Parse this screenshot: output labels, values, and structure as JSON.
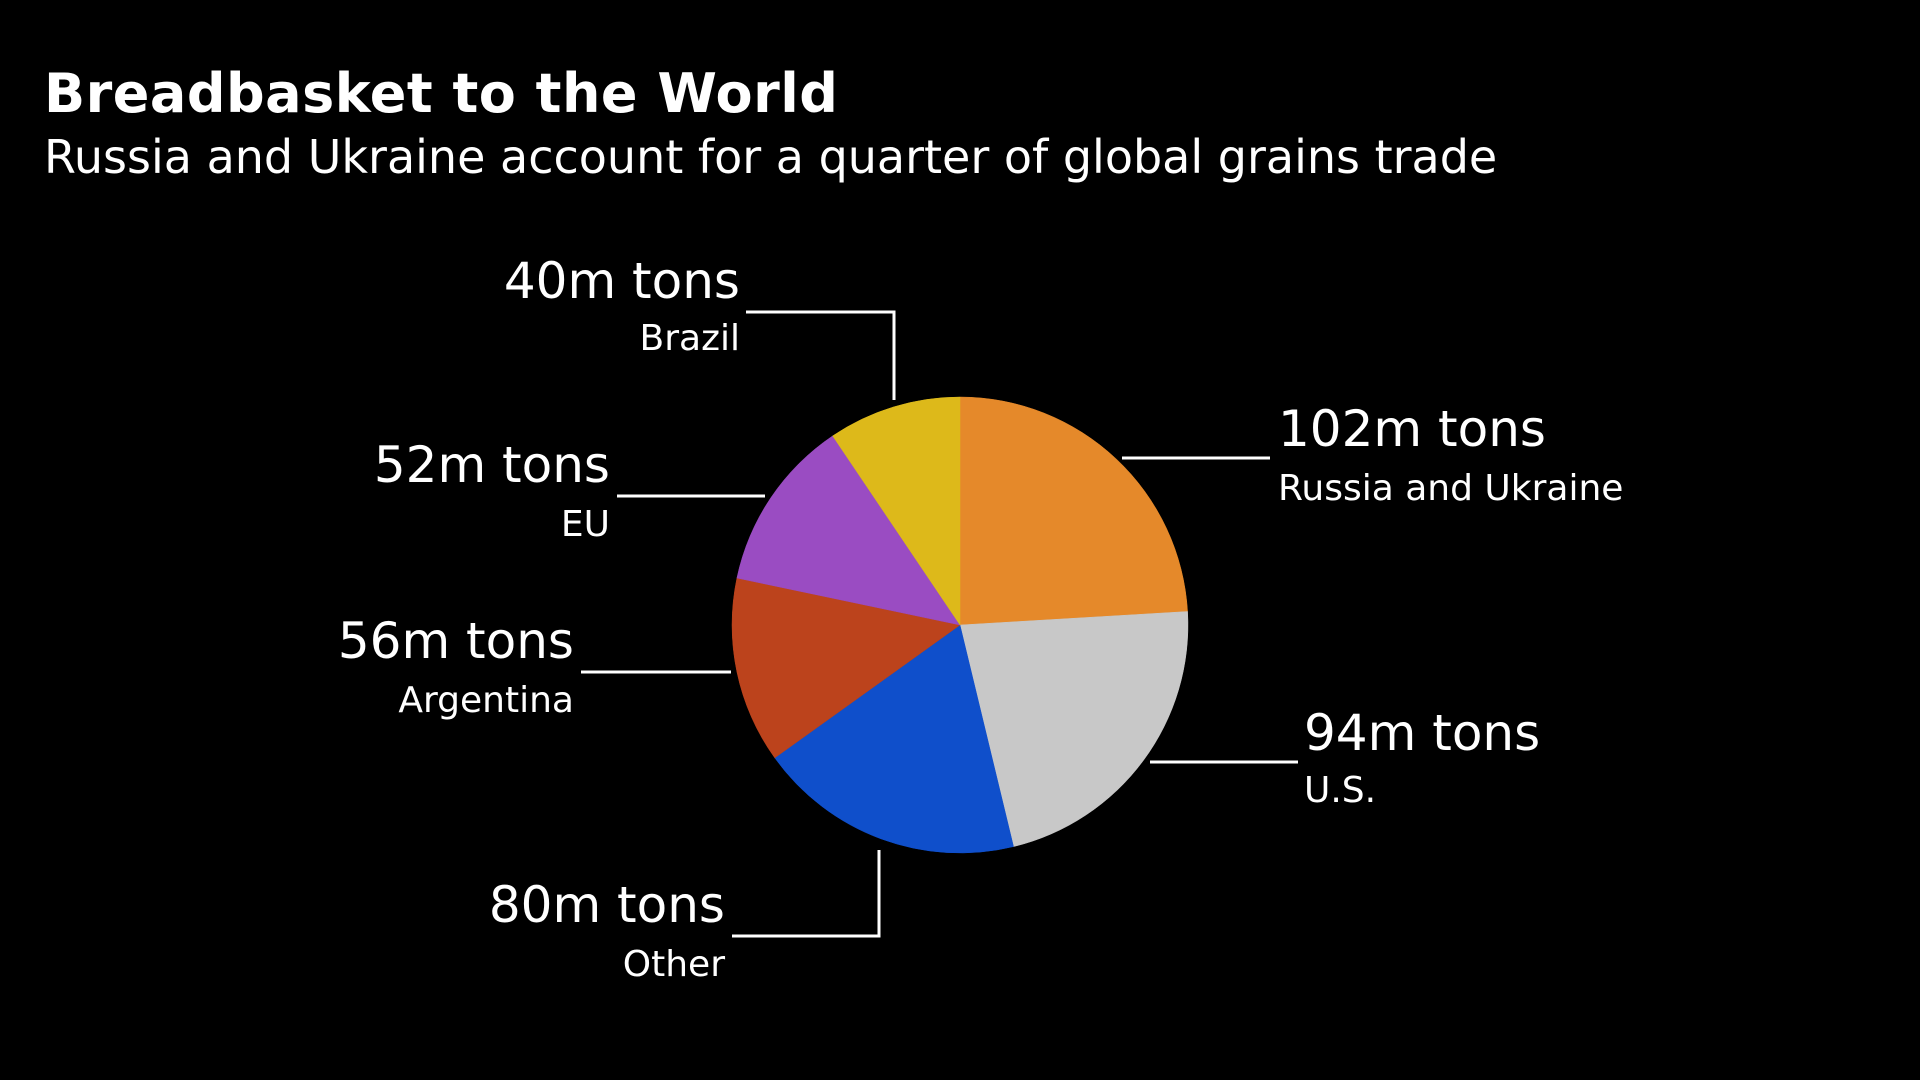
{
  "chart_data": {
    "type": "pie",
    "title": "Breadbasket to the World",
    "subtitle": "Russia and Ukraine account for a quarter of global grains trade",
    "unit": "m tons",
    "start_angle_deg": 0,
    "direction": "clockwise",
    "slices": [
      {
        "name": "Russia and Ukraine",
        "value": 102,
        "label": "102m tons",
        "color": "#E5892A"
      },
      {
        "name": "U.S.",
        "value": 94,
        "label": "94m tons",
        "color": "#C8C8C8"
      },
      {
        "name": "Other",
        "value": 80,
        "label": "80m tons",
        "color": "#0F4FCB"
      },
      {
        "name": "Argentina",
        "value": 56,
        "label": "56m tons",
        "color": "#BC431C"
      },
      {
        "name": "EU",
        "value": 52,
        "label": "52m tons",
        "color": "#9A4CC2"
      },
      {
        "name": "Brazil",
        "value": 40,
        "label": "40m tons",
        "color": "#DDB91A"
      }
    ]
  }
}
